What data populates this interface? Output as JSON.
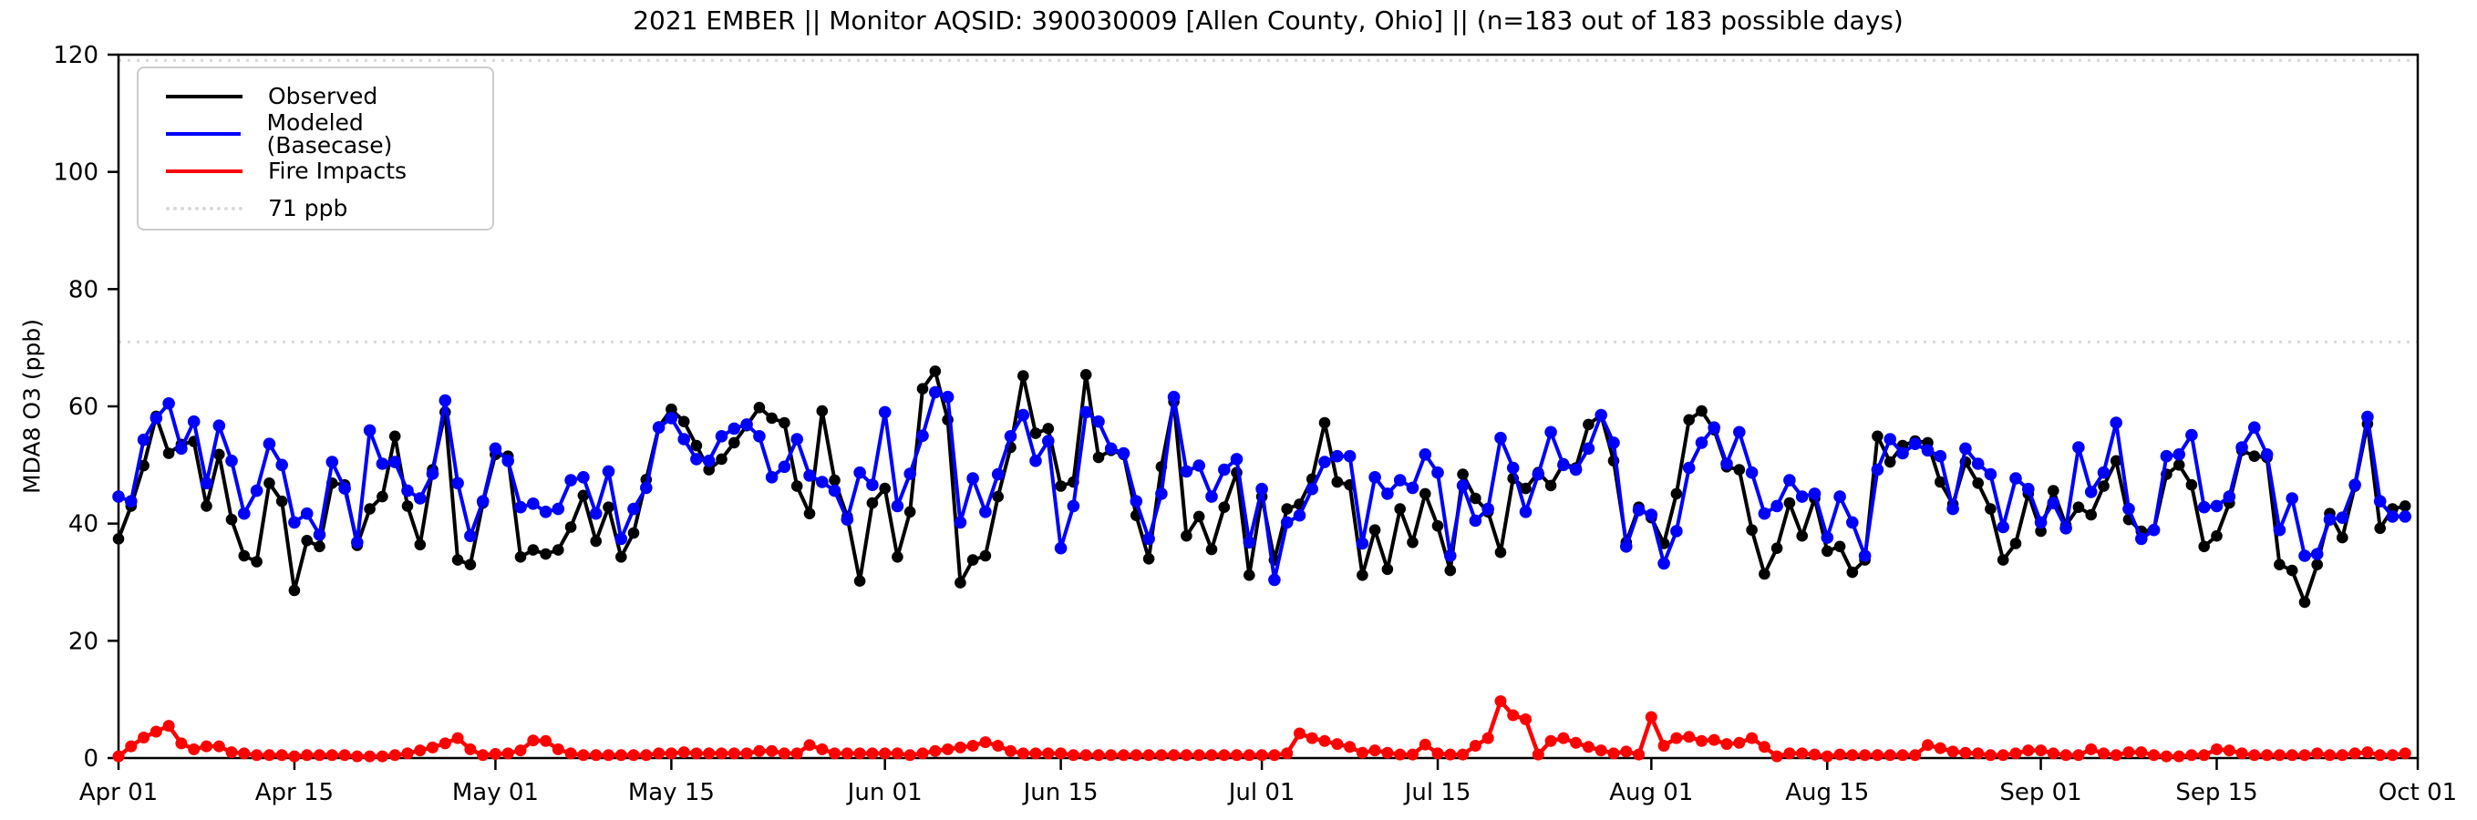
{
  "title": "2021 EMBER || Monitor AQSID: 390030009 [Allen County, Ohio] || (n=183 out of 183 possible days)",
  "legend": {
    "items": [
      {
        "label": "Observed",
        "color": "#000000",
        "style": "solid"
      },
      {
        "label": "Modeled (Basecase)",
        "color": "#0000ff",
        "style": "solid"
      },
      {
        "label": "Fire Impacts",
        "color": "#ff0000",
        "style": "solid"
      },
      {
        "label": "71 ppb",
        "color": "#d9d9d9",
        "style": "dotted"
      }
    ]
  },
  "chart_data": {
    "type": "line",
    "title": "2021 EMBER || Monitor AQSID: 390030009 [Allen County, Ohio] || (n=183 out of 183 possible days)",
    "xlabel": "",
    "ylabel": "MDA8 O3 (ppb)",
    "ylim": [
      0,
      120
    ],
    "yticks": [
      0,
      20,
      40,
      60,
      80,
      100,
      120
    ],
    "x_total_days": 183,
    "x_tick_labels": [
      "Apr 01",
      "Apr 15",
      "May 01",
      "May 15",
      "Jun 01",
      "Jun 15",
      "Jul 01",
      "Jul 15",
      "Aug 01",
      "Aug 15",
      "Sep 01",
      "Sep 15",
      "Oct 01"
    ],
    "x_tick_days": [
      0,
      14,
      30,
      44,
      61,
      75,
      91,
      105,
      122,
      136,
      153,
      167,
      183
    ],
    "threshold_ppb": 71,
    "upper_dotted_guide_ppb": 119,
    "guide_color": "#d9d9d9",
    "grid": false,
    "legend_position": "upper left",
    "series": [
      {
        "name": "Observed",
        "color": "#000000",
        "line_width": 4,
        "marker_radius": 6.3,
        "values": [
          37.4,
          43,
          49.9,
          58.3,
          52,
          53.5,
          54,
          43,
          51.8,
          40.7,
          34.5,
          33.5,
          46.9,
          43.8,
          28.6,
          37.1,
          36.1,
          46.9,
          46.6,
          36.3,
          42.5,
          44.6,
          54.9,
          43,
          36.4,
          49.2,
          59,
          33.8,
          33,
          43.5,
          51.8,
          51.5,
          34.3,
          35.5,
          34.8,
          35.5,
          39.4,
          44.8,
          37,
          42.8,
          34.3,
          38.4,
          47.5,
          56.5,
          59.5,
          57.4,
          53.3,
          49.2,
          51,
          53.8,
          56.7,
          59.8,
          58,
          57.2,
          46.4,
          41.7,
          59.2,
          47.4,
          41.2,
          30.2,
          43.5,
          46,
          34.3,
          42,
          63,
          66,
          57.7,
          29.9,
          33.8,
          34.5,
          44.6,
          53,
          65.2,
          55.4,
          56.2,
          46.4,
          47.1,
          65.4,
          51.3,
          52.5,
          51.8,
          41.4,
          34,
          49.7,
          60.8,
          37.9,
          41.2,
          35.6,
          42.8,
          48.7,
          31.2,
          44.6,
          33.8,
          42.5,
          43.3,
          47.6,
          57.2,
          47.1,
          46.6,
          31.2,
          38.9,
          32.2,
          42.5,
          36.8,
          45.1,
          39.6,
          32,
          48.4,
          44.3,
          42,
          35.1,
          47.7,
          46,
          48.7,
          46.5,
          50.2,
          49.5,
          56.9,
          58.5,
          50.7,
          36.8,
          42.8,
          41,
          36.6,
          45.1,
          57.7,
          59.2,
          56,
          49.7,
          49.2,
          38.9,
          31.4,
          35.8,
          43.5,
          37.9,
          44.3,
          35.3,
          36.1,
          31.7,
          33.8,
          54.9,
          50.5,
          53.3,
          54.1,
          53.8,
          47.1,
          43.3,
          50.5,
          46.9,
          42.5,
          33.8,
          36.6,
          45.1,
          38.7,
          45.6,
          39.7,
          42.8,
          41.5,
          46.4,
          50.7,
          40.7,
          38.7,
          38.9,
          48.4,
          50,
          46.6,
          36.1,
          37.9,
          43.5,
          52.5,
          51.5,
          51.3,
          33,
          32,
          26.6,
          33,
          41.7,
          37.6,
          46.4,
          57,
          39.2,
          42.5,
          43
        ]
      },
      {
        "name": "Modeled (Basecase)",
        "color": "#0000ff",
        "line_width": 4,
        "marker_radius": 6.8,
        "values": [
          44.6,
          43.8,
          54.3,
          58,
          60.5,
          52.8,
          57.4,
          46.9,
          56.7,
          50.7,
          41.7,
          45.6,
          53.6,
          50,
          40.2,
          41.7,
          38.1,
          50.5,
          46,
          36.8,
          55.9,
          50.2,
          50.5,
          45.6,
          44.3,
          48.5,
          61,
          46.9,
          37.9,
          43.8,
          52.8,
          50.7,
          42.8,
          43.4,
          42,
          42.5,
          47.4,
          47.9,
          41.7,
          48.9,
          37.4,
          42.5,
          46.1,
          56.4,
          58,
          54.4,
          51,
          50.7,
          54.9,
          56.2,
          56.9,
          54.9,
          47.9,
          49.7,
          54.4,
          48.2,
          47.1,
          45.6,
          40.7,
          48.7,
          46.6,
          59,
          43,
          48.5,
          55,
          62.4,
          61.6,
          40.2,
          47.7,
          42,
          48.4,
          54.9,
          58.5,
          50.7,
          54.1,
          35.8,
          43,
          59,
          57.4,
          52.8,
          52,
          43.8,
          37.4,
          45.1,
          61.6,
          48.9,
          49.9,
          44.6,
          49.2,
          51,
          36.8,
          45.9,
          30.4,
          40.2,
          41.4,
          45.9,
          50.5,
          51.5,
          51.5,
          36.6,
          47.9,
          45.1,
          47.4,
          46.1,
          51.8,
          48.7,
          34.5,
          46.5,
          40.5,
          42.5,
          54.6,
          49.5,
          42,
          48.4,
          55.6,
          50,
          49.2,
          52.8,
          58.5,
          53.8,
          36.1,
          42.3,
          41.5,
          33.2,
          38.7,
          49.5,
          53.8,
          56.4,
          50.2,
          55.6,
          48.7,
          41.7,
          43,
          47.4,
          44.6,
          45.1,
          37.6,
          44.6,
          40.2,
          34.5,
          49.2,
          54.4,
          52,
          53.6,
          52.5,
          51.5,
          42.5,
          52.8,
          50.2,
          48.4,
          39.4,
          47.7,
          45.9,
          40.2,
          43.5,
          39.2,
          53,
          45.4,
          48.7,
          57.2,
          42.5,
          37.4,
          38.9,
          51.5,
          51.8,
          55.1,
          42.8,
          43,
          44.6,
          53,
          56.4,
          51.8,
          38.9,
          44.3,
          34.5,
          34.8,
          40.7,
          41,
          46.6,
          58.2,
          43.8,
          41.2,
          41.2
        ]
      },
      {
        "name": "Fire Impacts",
        "color": "#ff0000",
        "line_width": 4.5,
        "marker_radius": 6.5,
        "values": [
          0.3,
          2,
          3.5,
          4.5,
          5.5,
          2.5,
          1.5,
          2,
          2,
          1,
          0.8,
          0.5,
          0.5,
          0.5,
          0.3,
          0.5,
          0.5,
          0.5,
          0.5,
          0.3,
          0.3,
          0.3,
          0.5,
          0.8,
          1.3,
          1.8,
          2.5,
          3.4,
          1.5,
          0.5,
          0.7,
          0.8,
          1.3,
          3,
          2.9,
          1.5,
          0.8,
          0.5,
          0.5,
          0.5,
          0.5,
          0.5,
          0.5,
          0.8,
          0.8,
          1,
          0.8,
          0.8,
          0.8,
          0.8,
          0.8,
          1.2,
          1.2,
          0.8,
          0.8,
          2.2,
          1.5,
          0.8,
          0.8,
          0.8,
          0.8,
          0.8,
          0.8,
          0.5,
          0.8,
          1.2,
          1.5,
          1.8,
          2.1,
          2.7,
          2.1,
          1.2,
          0.8,
          0.8,
          0.8,
          0.8,
          0.5,
          0.5,
          0.5,
          0.5,
          0.5,
          0.5,
          0.5,
          0.5,
          0.5,
          0.5,
          0.5,
          0.5,
          0.5,
          0.5,
          0.5,
          0.5,
          0.5,
          0.8,
          4.2,
          3.4,
          2.9,
          2.4,
          1.9,
          0.9,
          1.3,
          0.9,
          0.6,
          0.6,
          2.3,
          0.8,
          0.6,
          0.6,
          2.1,
          3.4,
          9.7,
          7.3,
          6.6,
          0.6,
          2.9,
          3.4,
          2.6,
          1.9,
          1.3,
          0.8,
          1.1,
          0.6,
          7,
          2.1,
          3.4,
          3.6,
          2.9,
          3.1,
          2.4,
          2.6,
          3.4,
          1.9,
          0.3,
          0.8,
          0.8,
          0.6,
          0.3,
          0.6,
          0.5,
          0.5,
          0.5,
          0.5,
          0.5,
          0.5,
          2.2,
          1.7,
          1.1,
          0.9,
          0.8,
          0.5,
          0.5,
          0.8,
          1.3,
          1.3,
          0.8,
          0.5,
          0.5,
          1.5,
          0.8,
          0.5,
          1,
          1,
          0.5,
          0.3,
          0.3,
          0.5,
          0.5,
          1.5,
          1.3,
          0.8,
          0.5,
          0.5,
          0.5,
          0.5,
          0.5,
          0.8,
          0.5,
          0.5,
          0.8,
          1,
          0.5,
          0.5,
          0.8
        ]
      }
    ]
  }
}
